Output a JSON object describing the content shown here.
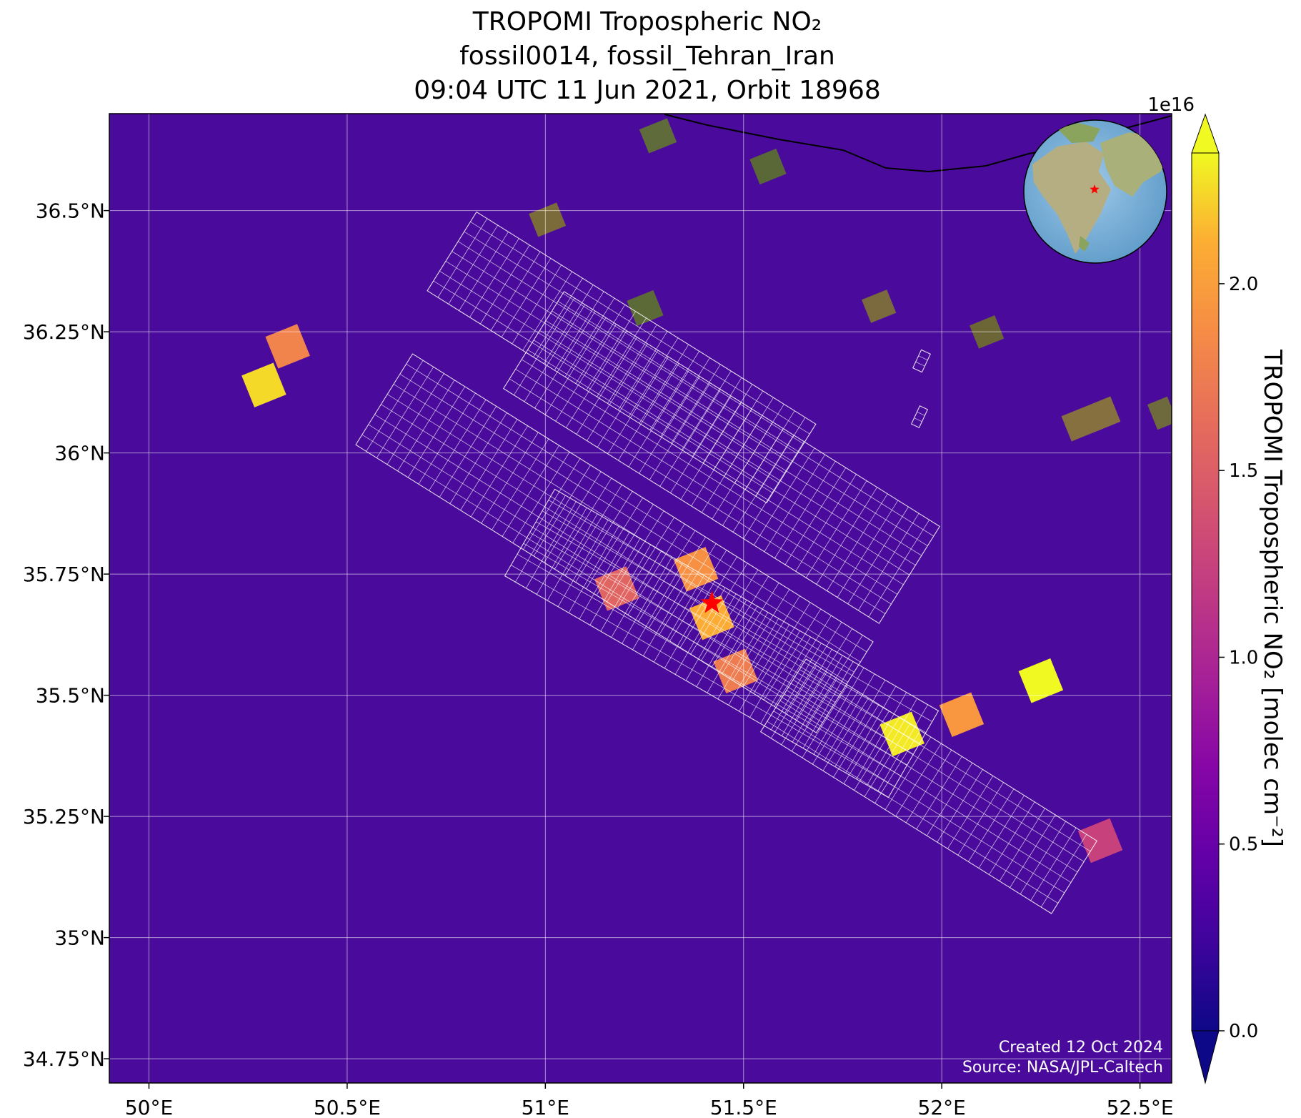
{
  "chart_data": {
    "type": "heatmap",
    "title": [
      "TROPOMI Tropospheric NO₂",
      "fossil0014, fossil_Tehran_Iran",
      "09:04 UTC 11 Jun 2021, Orbit 18968"
    ],
    "xlabel": "",
    "ylabel": "",
    "x_ticks": [
      50.0,
      50.5,
      51.0,
      51.5,
      52.0,
      52.5
    ],
    "x_tick_labels": [
      "50°E",
      "50.5°E",
      "51°E",
      "51.5°E",
      "52°E",
      "52.5°E"
    ],
    "y_ticks": [
      34.75,
      35.0,
      35.25,
      35.5,
      35.75,
      36.0,
      36.25,
      36.5
    ],
    "y_tick_labels": [
      "34.75°N",
      "35°N",
      "35.25°N",
      "35.5°N",
      "35.75°N",
      "36°N",
      "36.25°N",
      "36.5°N"
    ],
    "xlim": [
      49.9,
      52.58
    ],
    "ylim": [
      34.7,
      36.7
    ],
    "grid": true,
    "colormap": "plasma",
    "colorbar": {
      "label": "TROPOMI Tropospheric NO₂ [molec cm⁻²]",
      "exponent_label": "1e16",
      "ticks": [
        0.0,
        0.5,
        1.0,
        1.5,
        2.0
      ],
      "tick_labels": [
        "0.0",
        "0.5",
        "1.0",
        "1.5",
        "2.0"
      ],
      "range": [
        0.0,
        2.35
      ],
      "extend": "both"
    },
    "target_marker": {
      "lon": 51.42,
      "lat": 35.69,
      "symbol": "star",
      "color": "#ff0000"
    },
    "hotspots": [
      {
        "lon": 51.42,
        "lat": 35.66,
        "value": 2.1
      },
      {
        "lon": 51.38,
        "lat": 35.76,
        "value": 1.9
      },
      {
        "lon": 51.18,
        "lat": 35.72,
        "value": 1.55
      },
      {
        "lon": 51.48,
        "lat": 35.55,
        "value": 1.75
      },
      {
        "lon": 50.29,
        "lat": 36.14,
        "value": 2.25
      },
      {
        "lon": 50.35,
        "lat": 36.22,
        "value": 1.8
      },
      {
        "lon": 52.25,
        "lat": 35.53,
        "value": 2.35
      },
      {
        "lon": 51.9,
        "lat": 35.42,
        "value": 2.3
      },
      {
        "lon": 52.05,
        "lat": 35.46,
        "value": 1.95
      },
      {
        "lon": 52.4,
        "lat": 35.2,
        "value": 1.25
      }
    ],
    "inset": {
      "type": "globe",
      "marker": "star",
      "marker_color": "#ff0000"
    },
    "credits": [
      "Created 12 Oct 2024",
      "Source: NASA/JPL-Caltech"
    ]
  }
}
